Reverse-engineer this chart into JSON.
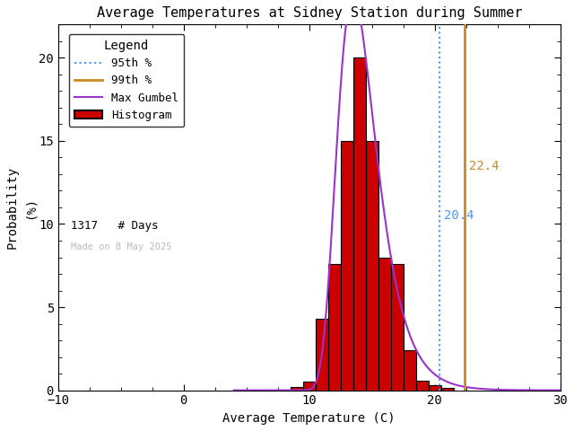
{
  "title": "Average Temperatures at Sidney Station during Summer",
  "xlabel": "Average Temperature (C)",
  "ylabel": "Probability\n(%)",
  "xlim": [
    -10,
    30
  ],
  "ylim": [
    0,
    22
  ],
  "xticks": [
    -10,
    0,
    10,
    20,
    30
  ],
  "yticks": [
    0,
    5,
    10,
    15,
    20
  ],
  "bar_color": "#cc0000",
  "bar_edge_color": "#000000",
  "gumbel_color": "#9933cc",
  "p95_color": "#4499ff",
  "p99_color": "#cc8822",
  "p95_value": 20.4,
  "p99_value": 22.4,
  "n_days": 1317,
  "made_on_text": "Made on 8 May 2025",
  "made_on_color": "#bbbbbb",
  "bin_centers": [
    9,
    10,
    11,
    12,
    13,
    14,
    15,
    16,
    17,
    18,
    19,
    20,
    21
  ],
  "bin_heights": [
    0.2,
    0.5,
    4.3,
    7.6,
    15.0,
    20.0,
    15.0,
    8.0,
    7.6,
    2.4,
    0.6,
    0.3,
    0.15
  ],
  "gumbel_mu": 13.5,
  "gumbel_beta": 1.55,
  "gumbel_scale": 100.0,
  "background_color": "#ffffff",
  "title_fontsize": 11,
  "axis_fontsize": 10,
  "tick_fontsize": 10
}
